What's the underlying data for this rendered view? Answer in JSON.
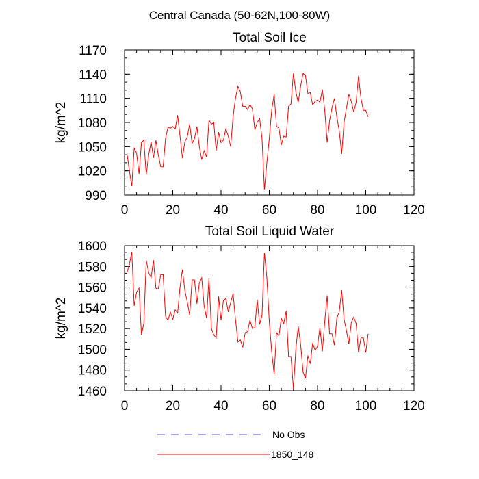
{
  "figure": {
    "title": "Central Canada (50-62N,100-80W)"
  },
  "legend": {
    "entries": [
      {
        "label": "No Obs",
        "color": "#5555cc",
        "dash": true
      },
      {
        "label": "1850_148",
        "color": "#ff0000",
        "dash": false
      }
    ]
  },
  "chart_data": [
    {
      "type": "line",
      "title": "Total Soil Ice",
      "xlabel": "",
      "ylabel": "kg/m^2",
      "xlim": [
        0,
        120
      ],
      "ylim": [
        990,
        1170
      ],
      "xticks": [
        0,
        20,
        40,
        60,
        80,
        100,
        120
      ],
      "yticks": [
        990,
        1020,
        1050,
        1080,
        1110,
        1140,
        1170
      ],
      "grid": false,
      "series": [
        {
          "name": "1850_148",
          "color": "#ff0000",
          "x": [
            1,
            2,
            3,
            4,
            5,
            6,
            7,
            8,
            9,
            10,
            11,
            12,
            13,
            14,
            15,
            16,
            17,
            18,
            19,
            20,
            21,
            22,
            23,
            24,
            25,
            26,
            27,
            28,
            29,
            30,
            31,
            32,
            33,
            34,
            35,
            36,
            37,
            38,
            39,
            40,
            41,
            42,
            43,
            44,
            45,
            46,
            47,
            48,
            49,
            50,
            51,
            52,
            53,
            54,
            55,
            56,
            57,
            58,
            59,
            60,
            61,
            62,
            63,
            64,
            65,
            66,
            67,
            68,
            69,
            70,
            71,
            72,
            73,
            74,
            75,
            76,
            77,
            78,
            79,
            80,
            81,
            82,
            83,
            84,
            85,
            86,
            87,
            88,
            89,
            90,
            91,
            92,
            93,
            94,
            95,
            96,
            97,
            98,
            99,
            100,
            101
          ],
          "values": [
            1042,
            1020,
            1001,
            1048,
            1042,
            1016,
            1055,
            1058,
            1015,
            1040,
            1056,
            1036,
            1058,
            1040,
            1025,
            1025,
            1060,
            1074,
            1073,
            1075,
            1072,
            1089,
            1063,
            1036,
            1056,
            1062,
            1078,
            1054,
            1060,
            1075,
            1050,
            1034,
            1045,
            1037,
            1083,
            1078,
            1080,
            1045,
            1068,
            1055,
            1058,
            1072,
            1063,
            1050,
            1087,
            1110,
            1125,
            1118,
            1100,
            1100,
            1096,
            1102,
            1097,
            1071,
            1080,
            1085,
            1060,
            997,
            1030,
            1060,
            1095,
            1115,
            1075,
            1073,
            1052,
            1063,
            1062,
            1100,
            1103,
            1141,
            1118,
            1105,
            1125,
            1141,
            1138,
            1116,
            1117,
            1102,
            1106,
            1108,
            1105,
            1121,
            1095,
            1055,
            1082,
            1098,
            1110,
            1087,
            1070,
            1041,
            1080,
            1098,
            1115,
            1106,
            1093,
            1105,
            1138,
            1110,
            1095,
            1095,
            1087
          ]
        }
      ]
    },
    {
      "type": "line",
      "title": "Total Soil Liquid Water",
      "xlabel": "",
      "ylabel": "kg/m^2",
      "xlim": [
        0,
        120
      ],
      "ylim": [
        1460,
        1600
      ],
      "xticks": [
        0,
        20,
        40,
        60,
        80,
        100,
        120
      ],
      "yticks": [
        1460,
        1480,
        1500,
        1520,
        1540,
        1560,
        1580,
        1600
      ],
      "grid": false,
      "series": [
        {
          "name": "1850_148",
          "color": "#ff0000",
          "x": [
            1,
            2,
            3,
            4,
            5,
            6,
            7,
            8,
            9,
            10,
            11,
            12,
            13,
            14,
            15,
            16,
            17,
            18,
            19,
            20,
            21,
            22,
            23,
            24,
            25,
            26,
            27,
            28,
            29,
            30,
            31,
            32,
            33,
            34,
            35,
            36,
            37,
            38,
            39,
            40,
            41,
            42,
            43,
            44,
            45,
            46,
            47,
            48,
            49,
            50,
            51,
            52,
            53,
            54,
            55,
            56,
            57,
            58,
            59,
            60,
            61,
            62,
            63,
            64,
            65,
            66,
            67,
            68,
            69,
            70,
            71,
            72,
            73,
            74,
            75,
            76,
            77,
            78,
            79,
            80,
            81,
            82,
            83,
            84,
            85,
            86,
            87,
            88,
            89,
            90,
            91,
            92,
            93,
            94,
            95,
            96,
            97,
            98,
            99,
            100,
            101
          ],
          "values": [
            1574,
            1582,
            1594,
            1542,
            1555,
            1559,
            1514,
            1525,
            1586,
            1574,
            1569,
            1586,
            1559,
            1558,
            1572,
            1572,
            1532,
            1528,
            1536,
            1529,
            1538,
            1535,
            1560,
            1577,
            1557,
            1546,
            1533,
            1567,
            1567,
            1544,
            1564,
            1569,
            1542,
            1530,
            1569,
            1520,
            1514,
            1511,
            1551,
            1528,
            1547,
            1549,
            1536,
            1545,
            1554,
            1529,
            1507,
            1509,
            1502,
            1516,
            1517,
            1528,
            1520,
            1521,
            1548,
            1524,
            1533,
            1593,
            1569,
            1527,
            1498,
            1476,
            1516,
            1513,
            1530,
            1525,
            1537,
            1493,
            1493,
            1462,
            1500,
            1522,
            1505,
            1478,
            1472,
            1494,
            1486,
            1506,
            1499,
            1503,
            1521,
            1498,
            1527,
            1552,
            1515,
            1515,
            1504,
            1530,
            1536,
            1557,
            1529,
            1518,
            1505,
            1526,
            1531,
            1525,
            1497,
            1511,
            1511,
            1497,
            1515
          ]
        }
      ]
    }
  ]
}
